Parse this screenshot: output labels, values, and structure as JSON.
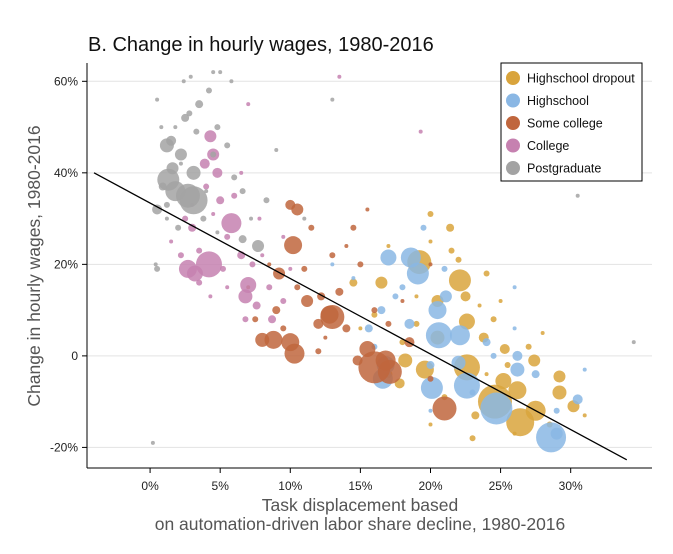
{
  "chart_data": {
    "type": "scatter",
    "title": "B. Change in hourly wages, 1980-2016",
    "xlabel_lines": [
      "Task displacement based",
      "on automation-driven labor share decline, 1980-2016"
    ],
    "ylabel": "Change in hourly wages, 1980-2016",
    "xlim": [
      -0.045,
      0.358
    ],
    "ylim": [
      -0.245,
      0.64
    ],
    "x_ticks": [
      {
        "value": 0,
        "label": "0%"
      },
      {
        "value": 0.05,
        "label": "5%"
      },
      {
        "value": 0.1,
        "label": "10%"
      },
      {
        "value": 0.15,
        "label": "15%"
      },
      {
        "value": 0.2,
        "label": "20%"
      },
      {
        "value": 0.25,
        "label": "25%"
      },
      {
        "value": 0.3,
        "label": "30%"
      }
    ],
    "y_ticks": [
      {
        "value": 0.6,
        "label": "60%"
      },
      {
        "value": 0.4,
        "label": "40%"
      },
      {
        "value": 0.2,
        "label": "20%"
      },
      {
        "value": 0,
        "label": "0"
      },
      {
        "value": -0.2,
        "label": "-20%"
      }
    ],
    "grid": "horizontal",
    "legend_position": "top-right",
    "fit_line": {
      "x": [
        -0.04,
        0.34
      ],
      "y": [
        0.4,
        -0.227
      ]
    },
    "series": [
      {
        "name": "Highschool dropout",
        "color": "#D9A43C",
        "points": [
          [
            0.192,
            0.205,
            12
          ],
          [
            0.221,
            0.165,
            11
          ],
          [
            0.226,
            0.075,
            8
          ],
          [
            0.226,
            -0.025,
            13
          ],
          [
            0.246,
            -0.1,
            17
          ],
          [
            0.264,
            -0.145,
            14
          ],
          [
            0.275,
            -0.12,
            10
          ],
          [
            0.262,
            -0.075,
            9
          ],
          [
            0.252,
            -0.055,
            8
          ],
          [
            0.292,
            -0.08,
            7
          ],
          [
            0.292,
            -0.045,
            6
          ],
          [
            0.274,
            -0.01,
            6
          ],
          [
            0.253,
            0.015,
            5
          ],
          [
            0.302,
            -0.11,
            6
          ],
          [
            0.182,
            -0.01,
            7
          ],
          [
            0.196,
            -0.03,
            9
          ],
          [
            0.205,
            0.04,
            7
          ],
          [
            0.165,
            0.16,
            6
          ],
          [
            0.205,
            0.12,
            6
          ],
          [
            0.225,
            0.13,
            5
          ],
          [
            0.238,
            0.04,
            5
          ],
          [
            0.178,
            -0.06,
            5
          ],
          [
            0.232,
            -0.13,
            4
          ],
          [
            0.214,
            0.28,
            4
          ],
          [
            0.17,
            -0.04,
            4
          ],
          [
            0.145,
            0.16,
            4
          ],
          [
            0.2,
            0.31,
            3
          ],
          [
            0.215,
            0.23,
            3
          ],
          [
            0.245,
            0.08,
            3
          ],
          [
            0.255,
            -0.02,
            3
          ],
          [
            0.21,
            -0.09,
            3
          ],
          [
            0.19,
            0.07,
            3
          ],
          [
            0.16,
            0.09,
            3
          ],
          [
            0.24,
            0.18,
            3
          ],
          [
            0.27,
            0.02,
            3
          ],
          [
            0.23,
            -0.18,
            3
          ],
          [
            0.285,
            -0.15,
            3
          ],
          [
            0.22,
            0.21,
            3
          ],
          [
            0.18,
            0.03,
            3
          ],
          [
            0.26,
            -0.17,
            2
          ],
          [
            0.17,
            0.24,
            2
          ],
          [
            0.2,
            0.25,
            2
          ],
          [
            0.235,
            0.11,
            2
          ],
          [
            0.19,
            0.13,
            2
          ],
          [
            0.15,
            0.06,
            2
          ],
          [
            0.25,
            0.12,
            2
          ],
          [
            0.31,
            -0.13,
            2
          ],
          [
            0.2,
            -0.15,
            2
          ],
          [
            0.28,
            0.05,
            2
          ],
          [
            0.24,
            -0.04,
            2
          ]
        ]
      },
      {
        "name": "Highschool",
        "color": "#8AB7E4",
        "points": [
          [
            0.17,
            0.215,
            8
          ],
          [
            0.186,
            0.215,
            10
          ],
          [
            0.191,
            0.18,
            11
          ],
          [
            0.205,
            0.1,
            9
          ],
          [
            0.206,
            0.045,
            13
          ],
          [
            0.221,
            0.045,
            10
          ],
          [
            0.201,
            -0.07,
            11
          ],
          [
            0.226,
            -0.065,
            13
          ],
          [
            0.247,
            -0.115,
            16
          ],
          [
            0.286,
            -0.178,
            15
          ],
          [
            0.168,
            -0.02,
            9
          ],
          [
            0.166,
            -0.05,
            10
          ],
          [
            0.211,
            0.13,
            6
          ],
          [
            0.22,
            -0.015,
            7
          ],
          [
            0.262,
            -0.03,
            7
          ],
          [
            0.262,
            0.0,
            5
          ],
          [
            0.305,
            -0.095,
            5
          ],
          [
            0.29,
            -0.17,
            6
          ],
          [
            0.185,
            0.07,
            5
          ],
          [
            0.156,
            0.06,
            4
          ],
          [
            0.165,
            0.1,
            4
          ],
          [
            0.2,
            -0.02,
            4
          ],
          [
            0.24,
            0.03,
            4
          ],
          [
            0.275,
            -0.04,
            4
          ],
          [
            0.175,
            0.13,
            3
          ],
          [
            0.16,
            0.02,
            3
          ],
          [
            0.195,
            0.28,
            3
          ],
          [
            0.245,
            0.0,
            3
          ],
          [
            0.23,
            -0.08,
            3
          ],
          [
            0.21,
            0.19,
            3
          ],
          [
            0.18,
            0.15,
            3
          ],
          [
            0.29,
            -0.12,
            3
          ],
          [
            0.26,
            0.06,
            2
          ],
          [
            0.145,
            0.17,
            2
          ],
          [
            0.2,
            -0.12,
            2
          ],
          [
            0.31,
            -0.03,
            2
          ],
          [
            0.26,
            0.15,
            2
          ],
          [
            0.13,
            0.2,
            2
          ]
        ]
      },
      {
        "name": "Some college",
        "color": "#C0663D",
        "points": [
          [
            0.1,
            0.33,
            5
          ],
          [
            0.105,
            0.32,
            6
          ],
          [
            0.102,
            0.242,
            9
          ],
          [
            0.1,
            0.03,
            9
          ],
          [
            0.092,
            0.18,
            6
          ],
          [
            0.08,
            0.035,
            7
          ],
          [
            0.088,
            0.035,
            9
          ],
          [
            0.103,
            0.005,
            10
          ],
          [
            0.128,
            0.09,
            9
          ],
          [
            0.13,
            0.085,
            12
          ],
          [
            0.155,
            0.015,
            8
          ],
          [
            0.16,
            -0.025,
            16
          ],
          [
            0.171,
            -0.035,
            12
          ],
          [
            0.168,
            -0.01,
            10
          ],
          [
            0.21,
            -0.115,
            12
          ],
          [
            0.112,
            0.12,
            6
          ],
          [
            0.12,
            0.07,
            5
          ],
          [
            0.122,
            0.13,
            4
          ],
          [
            0.14,
            0.06,
            4
          ],
          [
            0.185,
            0.03,
            5
          ],
          [
            0.148,
            -0.01,
            5
          ],
          [
            0.135,
            0.14,
            4
          ],
          [
            0.13,
            0.22,
            3
          ],
          [
            0.09,
            0.1,
            4
          ],
          [
            0.11,
            0.19,
            3
          ],
          [
            0.095,
            0.06,
            3
          ],
          [
            0.115,
            0.28,
            3
          ],
          [
            0.145,
            0.28,
            3
          ],
          [
            0.15,
            0.2,
            3
          ],
          [
            0.16,
            0.1,
            3
          ],
          [
            0.075,
            0.08,
            3
          ],
          [
            0.2,
            -0.05,
            3
          ],
          [
            0.17,
            0.07,
            3
          ],
          [
            0.12,
            0.01,
            3
          ],
          [
            0.105,
            0.15,
            3
          ],
          [
            0.155,
            0.32,
            2
          ],
          [
            0.085,
            0.2,
            2
          ],
          [
            0.125,
            0.04,
            2
          ],
          [
            0.18,
            0.12,
            2
          ],
          [
            0.14,
            0.24,
            2
          ],
          [
            0.2,
            0.2,
            2
          ],
          [
            0.07,
            0.15,
            2
          ]
        ]
      },
      {
        "name": "College",
        "color": "#C681B0",
        "points": [
          [
            0.042,
            0.2,
            13
          ],
          [
            0.058,
            0.29,
            10
          ],
          [
            0.027,
            0.19,
            9
          ],
          [
            0.032,
            0.18,
            8
          ],
          [
            0.07,
            0.155,
            8
          ],
          [
            0.068,
            0.13,
            7
          ],
          [
            0.045,
            0.44,
            6
          ],
          [
            0.043,
            0.48,
            6
          ],
          [
            0.048,
            0.4,
            5
          ],
          [
            0.039,
            0.42,
            5
          ],
          [
            0.05,
            0.34,
            4
          ],
          [
            0.03,
            0.28,
            4
          ],
          [
            0.076,
            0.11,
            4
          ],
          [
            0.087,
            0.08,
            4
          ],
          [
            0.065,
            0.22,
            4
          ],
          [
            0.035,
            0.23,
            3
          ],
          [
            0.055,
            0.26,
            3
          ],
          [
            0.073,
            0.2,
            3
          ],
          [
            0.025,
            0.3,
            3
          ],
          [
            0.06,
            0.35,
            3
          ],
          [
            0.04,
            0.37,
            3
          ],
          [
            0.085,
            0.15,
            3
          ],
          [
            0.095,
            0.12,
            3
          ],
          [
            0.022,
            0.22,
            3
          ],
          [
            0.035,
            0.16,
            3
          ],
          [
            0.068,
            0.08,
            3
          ],
          [
            0.052,
            0.19,
            3
          ],
          [
            0.08,
            0.22,
            2
          ],
          [
            0.095,
            0.26,
            2
          ],
          [
            0.043,
            0.13,
            2
          ],
          [
            0.03,
            0.33,
            2
          ],
          [
            0.065,
            0.4,
            2
          ],
          [
            0.078,
            0.3,
            2
          ],
          [
            0.1,
            0.19,
            2
          ],
          [
            0.045,
            0.31,
            2
          ],
          [
            0.015,
            0.25,
            2
          ],
          [
            0.055,
            0.15,
            2
          ],
          [
            0.135,
            0.61,
            2
          ],
          [
            0.193,
            0.49,
            2
          ],
          [
            0.07,
            0.55,
            2
          ]
        ]
      },
      {
        "name": "Postgraduate",
        "color": "#A3A3A3",
        "points": [
          [
            0.031,
            0.34,
            14
          ],
          [
            0.018,
            0.36,
            10
          ],
          [
            0.013,
            0.385,
            11
          ],
          [
            0.027,
            0.35,
            12
          ],
          [
            0.012,
            0.46,
            7
          ],
          [
            0.022,
            0.44,
            6
          ],
          [
            0.031,
            0.4,
            7
          ],
          [
            0.016,
            0.41,
            6
          ],
          [
            0.005,
            0.32,
            5
          ],
          [
            0.015,
            0.47,
            5
          ],
          [
            0.025,
            0.52,
            4
          ],
          [
            0.035,
            0.55,
            4
          ],
          [
            0.042,
            0.58,
            3
          ],
          [
            0.048,
            0.5,
            3
          ],
          [
            0.02,
            0.28,
            3
          ],
          [
            0.005,
            0.19,
            3
          ],
          [
            0.077,
            0.24,
            6
          ],
          [
            0.066,
            0.255,
            4
          ],
          [
            0.009,
            0.37,
            4
          ],
          [
            0.033,
            0.49,
            3
          ],
          [
            0.038,
            0.3,
            3
          ],
          [
            0.028,
            0.53,
            3
          ],
          [
            0.012,
            0.33,
            3
          ],
          [
            0.055,
            0.46,
            3
          ],
          [
            0.06,
            0.39,
            3
          ],
          [
            0.045,
            0.44,
            3
          ],
          [
            0.066,
            0.36,
            3
          ],
          [
            0.083,
            0.34,
            3
          ],
          [
            0.029,
            0.61,
            2
          ],
          [
            0.045,
            0.62,
            2
          ],
          [
            0.05,
            0.62,
            2
          ],
          [
            0.058,
            0.6,
            2
          ],
          [
            0.008,
            0.5,
            2
          ],
          [
            0.004,
            0.2,
            2
          ],
          [
            0.005,
            0.56,
            2
          ],
          [
            0.024,
            0.6,
            2
          ],
          [
            0.072,
            0.3,
            2
          ],
          [
            0.11,
            0.3,
            2
          ],
          [
            0.048,
            0.27,
            2
          ],
          [
            0.022,
            0.42,
            2
          ],
          [
            0.012,
            0.3,
            2
          ],
          [
            0.018,
            0.5,
            2
          ],
          [
            0.04,
            0.36,
            2
          ],
          [
            0.09,
            0.45,
            2
          ],
          [
            0.13,
            0.56,
            2
          ],
          [
            0.002,
            -0.19,
            2
          ],
          [
            0.305,
            0.35,
            2
          ],
          [
            0.345,
            0.03,
            2
          ]
        ]
      }
    ]
  }
}
